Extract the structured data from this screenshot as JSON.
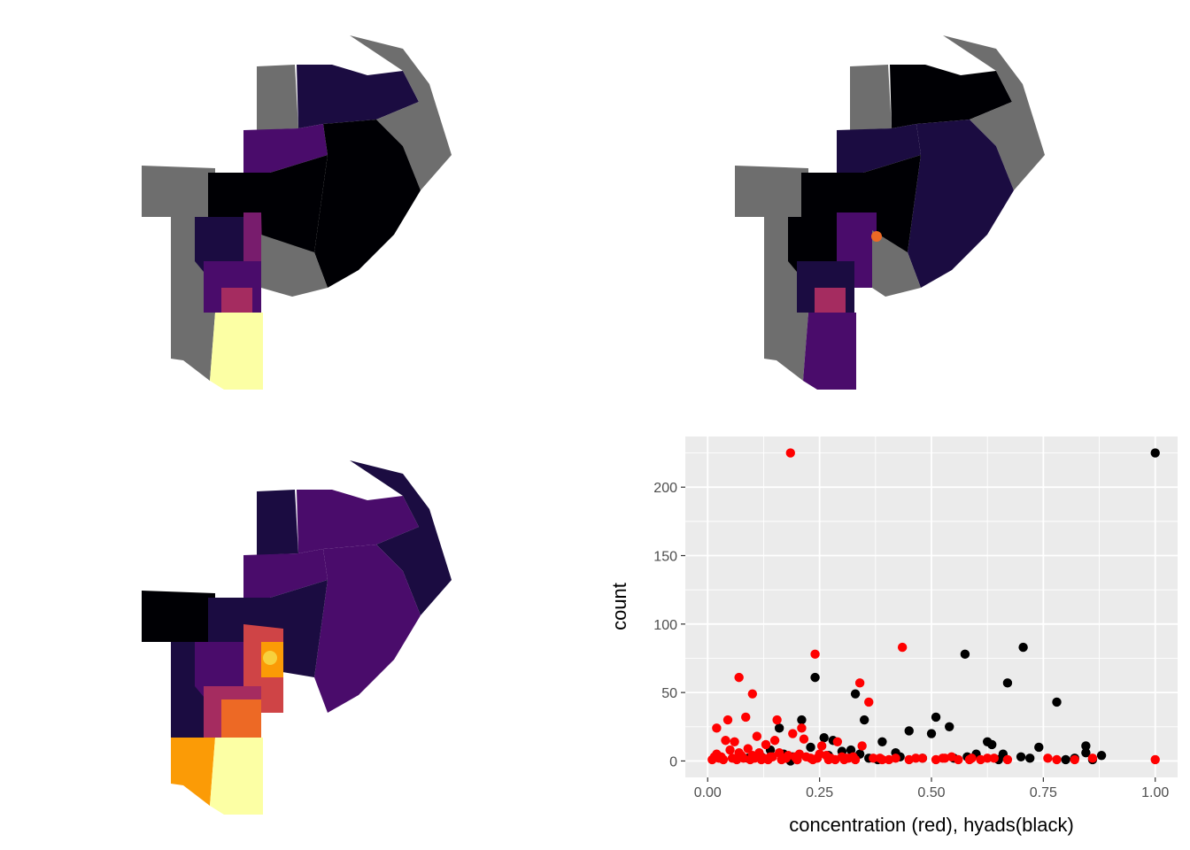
{
  "colors": {
    "map_na": "#6e6e6e",
    "inferno_0": "#000004",
    "inferno_1": "#1b0c41",
    "inferno_2": "#4a0c6b",
    "inferno_3": "#781c6d",
    "inferno_4": "#a52c60",
    "inferno_5": "#cf4446",
    "inferno_6": "#ed6925",
    "inferno_7": "#fb9b06",
    "inferno_8": "#f7d13d",
    "inferno_9": "#fcffa4",
    "panel_bg": "#ebebeb",
    "grid": "#ffffff",
    "hyads_point": "#000000",
    "concentration_point": "#ff0000"
  },
  "maps": [
    {
      "name": "map-top-left",
      "scheme": "inferno",
      "na_gray": true
    },
    {
      "name": "map-top-right",
      "scheme": "inferno",
      "na_gray": true
    },
    {
      "name": "map-bottom-left",
      "scheme": "inferno",
      "na_gray": false
    }
  ],
  "chart_data": {
    "type": "scatter",
    "xlabel": "concentration (red), hyads(black)",
    "ylabel": "count",
    "xlim": [
      -0.05,
      1.05
    ],
    "ylim": [
      -12,
      237
    ],
    "x_ticks": [
      0,
      0.25,
      0.5,
      0.75,
      1
    ],
    "x_tick_labels": [
      "0.00",
      "0.25",
      "0.50",
      "0.75",
      "1.00"
    ],
    "y_ticks": [
      0,
      50,
      100,
      150,
      200
    ],
    "y_tick_labels": [
      "0",
      "50",
      "100",
      "150",
      "200"
    ],
    "grid": true,
    "series": [
      {
        "color": "#000000",
        "points": [
          [
            1.0,
            225
          ],
          [
            0.705,
            83
          ],
          [
            0.575,
            78
          ],
          [
            0.24,
            61
          ],
          [
            0.67,
            57
          ],
          [
            0.78,
            43
          ],
          [
            0.33,
            49
          ],
          [
            0.51,
            32
          ],
          [
            0.35,
            30
          ],
          [
            0.54,
            25
          ],
          [
            0.45,
            22
          ],
          [
            0.5,
            20
          ],
          [
            0.39,
            14
          ],
          [
            0.625,
            14
          ],
          [
            0.635,
            12
          ],
          [
            0.74,
            10
          ],
          [
            0.845,
            11
          ],
          [
            0.845,
            6
          ],
          [
            0.26,
            17
          ],
          [
            0.28,
            15
          ],
          [
            0.21,
            30
          ],
          [
            0.23,
            10
          ],
          [
            0.3,
            7
          ],
          [
            0.34,
            5
          ],
          [
            0.36,
            2
          ],
          [
            0.42,
            6
          ],
          [
            0.6,
            5
          ],
          [
            0.66,
            5
          ],
          [
            0.7,
            3
          ],
          [
            0.82,
            2
          ],
          [
            0.88,
            4
          ],
          [
            0.8,
            1
          ],
          [
            0.58,
            3
          ],
          [
            0.48,
            2
          ],
          [
            0.43,
            3
          ],
          [
            0.38,
            1
          ],
          [
            0.32,
            8
          ],
          [
            0.19,
            3
          ],
          [
            0.17,
            5
          ],
          [
            0.16,
            24
          ],
          [
            0.14,
            8
          ],
          [
            0.2,
            1
          ],
          [
            0.185,
            0
          ],
          [
            0.27,
            4
          ],
          [
            0.55,
            2
          ],
          [
            0.65,
            1
          ],
          [
            0.72,
            2
          ],
          [
            0.86,
            1
          ],
          [
            0.12,
            3
          ],
          [
            0.09,
            2
          ]
        ]
      },
      {
        "color": "#ff0000",
        "points": [
          [
            0.185,
            225
          ],
          [
            0.435,
            83
          ],
          [
            0.24,
            78
          ],
          [
            0.07,
            61
          ],
          [
            0.34,
            57
          ],
          [
            0.1,
            49
          ],
          [
            0.36,
            43
          ],
          [
            0.085,
            32
          ],
          [
            0.045,
            30
          ],
          [
            0.155,
            30
          ],
          [
            0.02,
            24
          ],
          [
            0.21,
            24
          ],
          [
            0.19,
            20
          ],
          [
            0.11,
            18
          ],
          [
            0.04,
            15
          ],
          [
            0.06,
            14
          ],
          [
            0.13,
            12
          ],
          [
            0.15,
            15
          ],
          [
            0.215,
            16
          ],
          [
            0.255,
            11
          ],
          [
            0.29,
            14
          ],
          [
            0.345,
            11
          ],
          [
            0.02,
            5
          ],
          [
            0.03,
            3
          ],
          [
            0.05,
            8
          ],
          [
            0.07,
            6
          ],
          [
            0.08,
            2
          ],
          [
            0.09,
            9
          ],
          [
            0.1,
            4
          ],
          [
            0.12,
            1
          ],
          [
            0.14,
            3
          ],
          [
            0.16,
            6
          ],
          [
            0.17,
            2
          ],
          [
            0.18,
            4
          ],
          [
            0.2,
            1
          ],
          [
            0.22,
            3
          ],
          [
            0.23,
            2
          ],
          [
            0.25,
            5
          ],
          [
            0.27,
            1
          ],
          [
            0.3,
            3
          ],
          [
            0.31,
            2
          ],
          [
            0.33,
            1
          ],
          [
            0.37,
            2
          ],
          [
            0.39,
            1
          ],
          [
            0.42,
            2
          ],
          [
            0.45,
            1
          ],
          [
            0.48,
            2
          ],
          [
            0.51,
            1
          ],
          [
            0.53,
            2
          ],
          [
            0.56,
            1
          ],
          [
            0.59,
            2
          ],
          [
            0.61,
            1
          ],
          [
            0.64,
            2
          ],
          [
            0.67,
            1
          ],
          [
            0.76,
            2
          ],
          [
            0.78,
            1
          ],
          [
            0.82,
            1
          ],
          [
            0.86,
            2
          ],
          [
            1.0,
            1
          ],
          [
            0.01,
            1
          ],
          [
            0.015,
            3
          ],
          [
            0.025,
            2
          ],
          [
            0.035,
            1
          ],
          [
            0.055,
            2
          ],
          [
            0.065,
            1
          ],
          [
            0.075,
            4
          ],
          [
            0.095,
            1
          ],
          [
            0.105,
            2
          ],
          [
            0.115,
            6
          ],
          [
            0.125,
            2
          ],
          [
            0.135,
            1
          ],
          [
            0.145,
            3
          ],
          [
            0.165,
            1
          ],
          [
            0.175,
            2
          ],
          [
            0.195,
            3
          ],
          [
            0.205,
            5
          ],
          [
            0.235,
            1
          ],
          [
            0.245,
            2
          ],
          [
            0.265,
            4
          ],
          [
            0.275,
            2
          ],
          [
            0.285,
            1
          ],
          [
            0.305,
            1
          ],
          [
            0.315,
            2
          ],
          [
            0.325,
            3
          ],
          [
            0.385,
            2
          ],
          [
            0.405,
            1
          ],
          [
            0.465,
            2
          ],
          [
            0.525,
            2
          ],
          [
            0.545,
            3
          ],
          [
            0.585,
            1
          ],
          [
            0.625,
            2
          ]
        ]
      }
    ]
  }
}
